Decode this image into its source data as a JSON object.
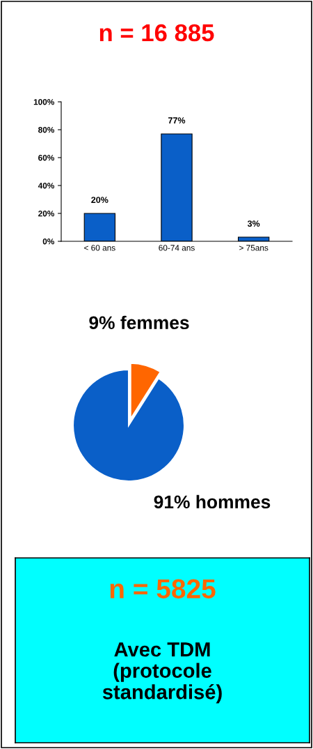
{
  "chart_data": [
    {
      "type": "bar",
      "title": "n = 16 885",
      "categories": [
        "< 60 ans",
        "60-74 ans",
        "> 75ans"
      ],
      "values": [
        20,
        77,
        3
      ],
      "value_labels": [
        "20%",
        "77%",
        "3%"
      ],
      "color": "#0a5fc8",
      "ylim": [
        0,
        100
      ],
      "yticks": [
        {
          "value": 0,
          "label": "0%"
        },
        {
          "value": 20,
          "label": "20%"
        },
        {
          "value": 40,
          "label": "40%"
        },
        {
          "value": 60,
          "label": "60%"
        },
        {
          "value": 80,
          "label": "80%"
        },
        {
          "value": 100,
          "label": "100%"
        }
      ],
      "grid": false
    },
    {
      "type": "pie",
      "categories": [
        "femmes",
        "hommes"
      ],
      "values": [
        9,
        91
      ],
      "value_labels": [
        "9%",
        "91%"
      ],
      "colors": [
        "#ff6600",
        "#0a5fc8"
      ]
    },
    {
      "type": "other",
      "title": "n = 5825",
      "subtitle": "Avec TDM\n(protocole\nstandardisé)",
      "color": "#00ffff"
    }
  ]
}
